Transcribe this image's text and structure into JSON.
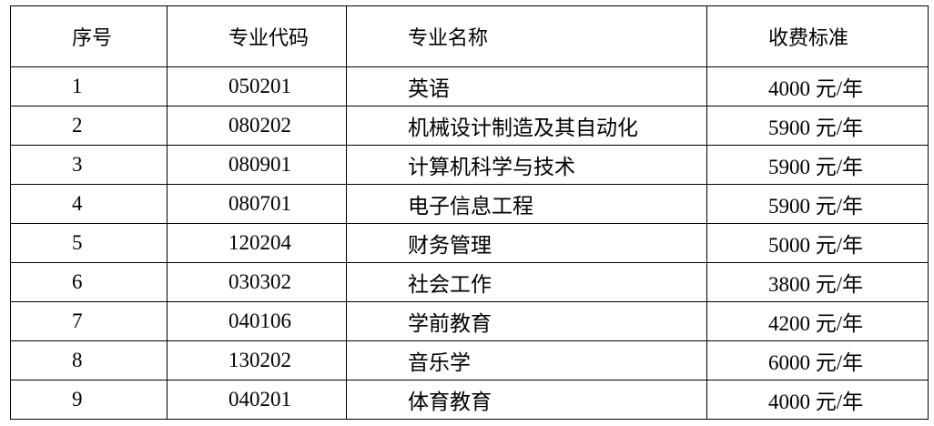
{
  "headers": [
    "序号",
    "专业代码",
    "专业名称",
    "收费标准"
  ],
  "rows": [
    [
      "1",
      "050201",
      "英语",
      "4000 元/年"
    ],
    [
      "2",
      "080202",
      "机械设计制造及其自动化",
      "5900 元/年"
    ],
    [
      "3",
      "080901",
      "计算机科学与技术",
      "5900 元/年"
    ],
    [
      "4",
      "080701",
      "电子信息工程",
      "5900 元/年"
    ],
    [
      "5",
      "120204",
      "财务管理",
      "5000 元/年"
    ],
    [
      "6",
      "030302",
      "社会工作",
      "3800 元/年"
    ],
    [
      "7",
      "040106",
      "学前教育",
      "4200 元/年"
    ],
    [
      "8",
      "130202",
      "音乐学",
      "6000 元/年"
    ],
    [
      "9",
      "040201",
      "体育教育",
      "4000 元/年"
    ]
  ]
}
